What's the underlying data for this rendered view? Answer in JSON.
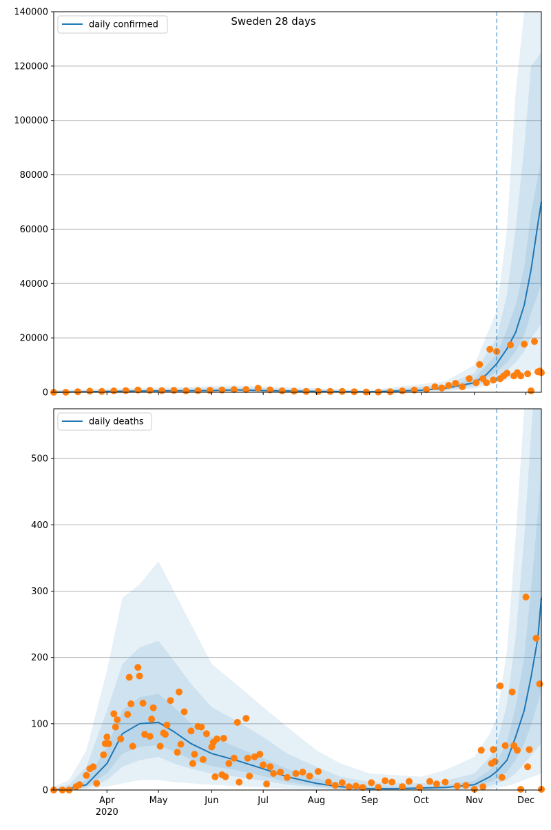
{
  "figure": {
    "title": "Sweden 28 days"
  },
  "colors": {
    "line": "#1f77b4",
    "observed": "#ff7f0e",
    "band": "#1f77b4",
    "grid": "#b0b0b0",
    "axis": "#000000",
    "cutoff": "#1f77b4"
  },
  "x_axis": {
    "start": "2020-03-01",
    "end": "2020-12-10",
    "ticks": [
      {
        "date": "2020-04-01",
        "label": "Apr",
        "sublabel": "2020"
      },
      {
        "date": "2020-05-01",
        "label": "May"
      },
      {
        "date": "2020-06-01",
        "label": "Jun"
      },
      {
        "date": "2020-07-01",
        "label": "Jul"
      },
      {
        "date": "2020-08-01",
        "label": "Aug"
      },
      {
        "date": "2020-09-01",
        "label": "Sep"
      },
      {
        "date": "2020-10-01",
        "label": "Oct"
      },
      {
        "date": "2020-11-01",
        "label": "Nov"
      },
      {
        "date": "2020-12-01",
        "label": "Dec"
      }
    ],
    "forecast_start": "2020-11-14"
  },
  "chart_data": [
    {
      "type": "line",
      "panel": "top",
      "legend": "daily confirmed",
      "legend_position": "top-left",
      "grid": true,
      "ylim": [
        0,
        140000
      ],
      "yticks": [
        0,
        20000,
        40000,
        60000,
        80000,
        100000,
        120000,
        140000
      ],
      "median": {
        "x": [
          "2020-03-01",
          "2020-04-01",
          "2020-05-01",
          "2020-06-01",
          "2020-06-15",
          "2020-07-01",
          "2020-08-01",
          "2020-09-01",
          "2020-10-01",
          "2020-10-15",
          "2020-11-01",
          "2020-11-08",
          "2020-11-14",
          "2020-11-20",
          "2020-11-25",
          "2020-11-30",
          "2020-12-04",
          "2020-12-08",
          "2020-12-10"
        ],
        "y": [
          0,
          300,
          500,
          600,
          900,
          600,
          300,
          200,
          700,
          1500,
          3500,
          6500,
          10500,
          16000,
          22000,
          32000,
          45000,
          62000,
          70000
        ]
      },
      "bands": [
        {
          "x": [
            "2020-03-01",
            "2020-06-15",
            "2020-09-01",
            "2020-10-15",
            "2020-11-01",
            "2020-11-14",
            "2020-11-20",
            "2020-11-25",
            "2020-11-30",
            "2020-12-04",
            "2020-12-10"
          ],
          "lower": [
            0,
            200,
            0,
            400,
            1200,
            3500,
            4500,
            5500,
            6500,
            8000,
            9000
          ],
          "upper": [
            800,
            2500,
            800,
            4000,
            10000,
            30000,
            60000,
            110000,
            140000,
            140000,
            140000
          ]
        },
        {
          "x": [
            "2020-03-01",
            "2020-06-15",
            "2020-09-01",
            "2020-10-15",
            "2020-11-01",
            "2020-11-14",
            "2020-11-20",
            "2020-11-25",
            "2020-11-30",
            "2020-12-04",
            "2020-12-10"
          ],
          "lower": [
            0,
            400,
            100,
            700,
            2000,
            5500,
            8000,
            11000,
            15000,
            20000,
            25000
          ],
          "upper": [
            500,
            1800,
            500,
            2800,
            7000,
            20000,
            36000,
            60000,
            90000,
            120000,
            125000
          ]
        },
        {
          "x": [
            "2020-03-01",
            "2020-06-15",
            "2020-09-01",
            "2020-10-15",
            "2020-11-01",
            "2020-11-14",
            "2020-11-20",
            "2020-11-25",
            "2020-11-30",
            "2020-12-04",
            "2020-12-10"
          ],
          "lower": [
            0,
            600,
            150,
            1000,
            2600,
            7500,
            11000,
            15000,
            21000,
            29000,
            40000
          ],
          "upper": [
            300,
            1200,
            300,
            2000,
            5000,
            14000,
            23000,
            32000,
            46000,
            66000,
            86000
          ]
        }
      ],
      "observed": {
        "x": [
          "2020-03-01",
          "2020-03-08",
          "2020-03-15",
          "2020-03-22",
          "2020-03-29",
          "2020-04-05",
          "2020-04-12",
          "2020-04-19",
          "2020-04-26",
          "2020-05-03",
          "2020-05-10",
          "2020-05-17",
          "2020-05-24",
          "2020-05-31",
          "2020-06-07",
          "2020-06-14",
          "2020-06-21",
          "2020-06-28",
          "2020-07-05",
          "2020-07-12",
          "2020-07-19",
          "2020-07-26",
          "2020-08-02",
          "2020-08-09",
          "2020-08-16",
          "2020-08-23",
          "2020-08-30",
          "2020-09-06",
          "2020-09-13",
          "2020-09-20",
          "2020-09-27",
          "2020-10-04",
          "2020-10-09",
          "2020-10-13",
          "2020-10-17",
          "2020-10-21",
          "2020-10-25",
          "2020-10-29",
          "2020-11-02",
          "2020-11-04",
          "2020-11-06",
          "2020-11-08",
          "2020-11-10",
          "2020-11-12",
          "2020-11-14",
          "2020-11-16",
          "2020-11-18",
          "2020-11-20",
          "2020-11-22",
          "2020-11-24",
          "2020-11-26",
          "2020-11-28",
          "2020-11-30",
          "2020-12-02",
          "2020-12-04",
          "2020-12-06",
          "2020-12-08",
          "2020-12-09",
          "2020-12-10"
        ],
        "y": [
          0,
          0,
          200,
          400,
          300,
          500,
          600,
          800,
          700,
          600,
          700,
          500,
          600,
          700,
          800,
          1000,
          1000,
          1500,
          900,
          500,
          400,
          300,
          300,
          300,
          300,
          200,
          100,
          100,
          200,
          500,
          800,
          1000,
          2000,
          1600,
          2500,
          3300,
          2000,
          5000,
          3500,
          10200,
          5000,
          3500,
          15800,
          4500,
          15000,
          5000,
          6000,
          7000,
          17400,
          6000,
          7200,
          6000,
          17700,
          6800,
          500,
          18700,
          7500,
          7800,
          7200
        ]
      }
    },
    {
      "type": "line",
      "panel": "bottom",
      "legend": "daily deaths",
      "legend_position": "top-left",
      "grid": true,
      "ylim": [
        0,
        575
      ],
      "yticks": [
        0,
        100,
        200,
        300,
        400,
        500
      ],
      "median": {
        "x": [
          "2020-03-01",
          "2020-03-10",
          "2020-03-20",
          "2020-04-01",
          "2020-04-10",
          "2020-04-20",
          "2020-05-01",
          "2020-05-10",
          "2020-05-20",
          "2020-06-01",
          "2020-06-15",
          "2020-07-01",
          "2020-07-15",
          "2020-08-01",
          "2020-08-15",
          "2020-09-01",
          "2020-09-15",
          "2020-10-01",
          "2020-10-15",
          "2020-11-01",
          "2020-11-10",
          "2020-11-14",
          "2020-11-20",
          "2020-11-25",
          "2020-11-30",
          "2020-12-04",
          "2020-12-08",
          "2020-12-10"
        ],
        "y": [
          0,
          2,
          8,
          40,
          85,
          100,
          102,
          88,
          70,
          55,
          45,
          32,
          20,
          10,
          5,
          2,
          2,
          3,
          4,
          8,
          20,
          28,
          45,
          80,
          120,
          170,
          230,
          290
        ]
      },
      "bands": [
        {
          "x": [
            "2020-03-01",
            "2020-03-10",
            "2020-03-20",
            "2020-04-01",
            "2020-04-10",
            "2020-04-20",
            "2020-05-01",
            "2020-05-10",
            "2020-05-20",
            "2020-06-01",
            "2020-06-15",
            "2020-07-01",
            "2020-07-15",
            "2020-08-01",
            "2020-08-15",
            "2020-09-01",
            "2020-10-01",
            "2020-10-15",
            "2020-11-01",
            "2020-11-10",
            "2020-11-14",
            "2020-11-20",
            "2020-11-25",
            "2020-11-30",
            "2020-12-05",
            "2020-12-10"
          ],
          "lower": [
            0,
            0,
            1,
            5,
            10,
            15,
            15,
            12,
            10,
            8,
            6,
            4,
            2,
            1,
            0,
            0,
            0,
            0,
            1,
            2,
            4,
            6,
            10,
            15,
            20,
            25
          ],
          "upper": [
            5,
            15,
            60,
            180,
            290,
            310,
            345,
            300,
            250,
            190,
            160,
            125,
            95,
            60,
            40,
            25,
            20,
            30,
            50,
            85,
            110,
            210,
            380,
            575,
            575,
            575
          ]
        },
        {
          "x": [
            "2020-03-01",
            "2020-03-10",
            "2020-03-20",
            "2020-04-01",
            "2020-04-10",
            "2020-04-20",
            "2020-05-01",
            "2020-05-10",
            "2020-05-20",
            "2020-06-01",
            "2020-06-15",
            "2020-07-01",
            "2020-07-15",
            "2020-08-01",
            "2020-08-15",
            "2020-09-01",
            "2020-10-01",
            "2020-10-15",
            "2020-11-01",
            "2020-11-10",
            "2020-11-14",
            "2020-11-20",
            "2020-11-25",
            "2020-11-30",
            "2020-12-05",
            "2020-12-10"
          ],
          "lower": [
            0,
            0,
            3,
            15,
            35,
            45,
            50,
            40,
            32,
            25,
            20,
            14,
            8,
            4,
            1,
            0,
            0,
            1,
            2,
            6,
            10,
            15,
            25,
            40,
            55,
            70
          ],
          "upper": [
            2,
            8,
            35,
            120,
            190,
            215,
            225,
            195,
            160,
            125,
            105,
            80,
            55,
            35,
            20,
            12,
            10,
            14,
            25,
            50,
            70,
            130,
            230,
            380,
            575,
            575
          ]
        },
        {
          "x": [
            "2020-03-01",
            "2020-03-10",
            "2020-03-20",
            "2020-04-01",
            "2020-04-10",
            "2020-04-20",
            "2020-05-01",
            "2020-05-10",
            "2020-05-20",
            "2020-06-01",
            "2020-06-15",
            "2020-07-01",
            "2020-07-15",
            "2020-08-01",
            "2020-08-15",
            "2020-09-01",
            "2020-10-01",
            "2020-10-15",
            "2020-11-01",
            "2020-11-10",
            "2020-11-14",
            "2020-11-20",
            "2020-11-25",
            "2020-11-30",
            "2020-12-05",
            "2020-12-10"
          ],
          "lower": [
            0,
            1,
            5,
            25,
            55,
            65,
            68,
            58,
            46,
            36,
            30,
            21,
            12,
            6,
            2,
            1,
            1,
            2,
            4,
            12,
            17,
            27,
            45,
            70,
            105,
            150
          ],
          "upper": [
            1,
            4,
            15,
            65,
            120,
            140,
            145,
            125,
            100,
            80,
            65,
            48,
            32,
            18,
            10,
            5,
            5,
            7,
            14,
            30,
            42,
            72,
            125,
            200,
            330,
            480
          ]
        }
      ],
      "observed": {
        "x": [
          "2020-03-01",
          "2020-03-06",
          "2020-03-10",
          "2020-03-14",
          "2020-03-16",
          "2020-03-20",
          "2020-03-22",
          "2020-03-24",
          "2020-03-26",
          "2020-03-30",
          "2020-03-31",
          "2020-04-01",
          "2020-04-02",
          "2020-04-05",
          "2020-04-06",
          "2020-04-07",
          "2020-04-09",
          "2020-04-13",
          "2020-04-14",
          "2020-04-15",
          "2020-04-16",
          "2020-04-19",
          "2020-04-20",
          "2020-04-22",
          "2020-04-23",
          "2020-04-26",
          "2020-04-27",
          "2020-04-28",
          "2020-05-02",
          "2020-05-04",
          "2020-05-05",
          "2020-05-06",
          "2020-05-08",
          "2020-05-12",
          "2020-05-13",
          "2020-05-14",
          "2020-05-16",
          "2020-05-20",
          "2020-05-21",
          "2020-05-22",
          "2020-05-24",
          "2020-05-26",
          "2020-05-27",
          "2020-05-29",
          "2020-06-01",
          "2020-06-02",
          "2020-06-03",
          "2020-06-04",
          "2020-06-07",
          "2020-06-08",
          "2020-06-09",
          "2020-06-11",
          "2020-06-14",
          "2020-06-16",
          "2020-06-17",
          "2020-06-21",
          "2020-06-22",
          "2020-06-23",
          "2020-06-26",
          "2020-06-29",
          "2020-07-01",
          "2020-07-03",
          "2020-07-05",
          "2020-07-07",
          "2020-07-11",
          "2020-07-15",
          "2020-07-20",
          "2020-07-24",
          "2020-07-28",
          "2020-08-02",
          "2020-08-08",
          "2020-08-12",
          "2020-08-16",
          "2020-08-20",
          "2020-08-24",
          "2020-08-28",
          "2020-09-02",
          "2020-09-06",
          "2020-09-10",
          "2020-09-14",
          "2020-09-20",
          "2020-09-24",
          "2020-09-30",
          "2020-10-06",
          "2020-10-10",
          "2020-10-15",
          "2020-10-22",
          "2020-10-27",
          "2020-11-01",
          "2020-11-05",
          "2020-11-06",
          "2020-11-11",
          "2020-11-12",
          "2020-11-13",
          "2020-11-16",
          "2020-11-17",
          "2020-11-19",
          "2020-11-23",
          "2020-11-24",
          "2020-11-26",
          "2020-11-28",
          "2020-12-01",
          "2020-12-02",
          "2020-12-03",
          "2020-12-07",
          "2020-12-09",
          "2020-12-10"
        ],
        "y": [
          0,
          0,
          0,
          5,
          8,
          22,
          32,
          35,
          10,
          53,
          70,
          80,
          70,
          115,
          95,
          106,
          77,
          114,
          170,
          130,
          66,
          185,
          172,
          131,
          84,
          81,
          107,
          124,
          66,
          86,
          84,
          98,
          135,
          57,
          148,
          69,
          118,
          89,
          40,
          54,
          96,
          95,
          46,
          85,
          65,
          72,
          20,
          77,
          23,
          78,
          20,
          40,
          48,
          102,
          12,
          108,
          48,
          21,
          50,
          54,
          38,
          9,
          35,
          25,
          27,
          19,
          25,
          27,
          21,
          28,
          12,
          7,
          11,
          5,
          6,
          4,
          11,
          4,
          14,
          12,
          5,
          13,
          4,
          13,
          9,
          12,
          6,
          7,
          1,
          60,
          5,
          40,
          61,
          43,
          157,
          19,
          67,
          148,
          67,
          60,
          1,
          291,
          35,
          61,
          229,
          160,
          1
        ]
      }
    }
  ]
}
